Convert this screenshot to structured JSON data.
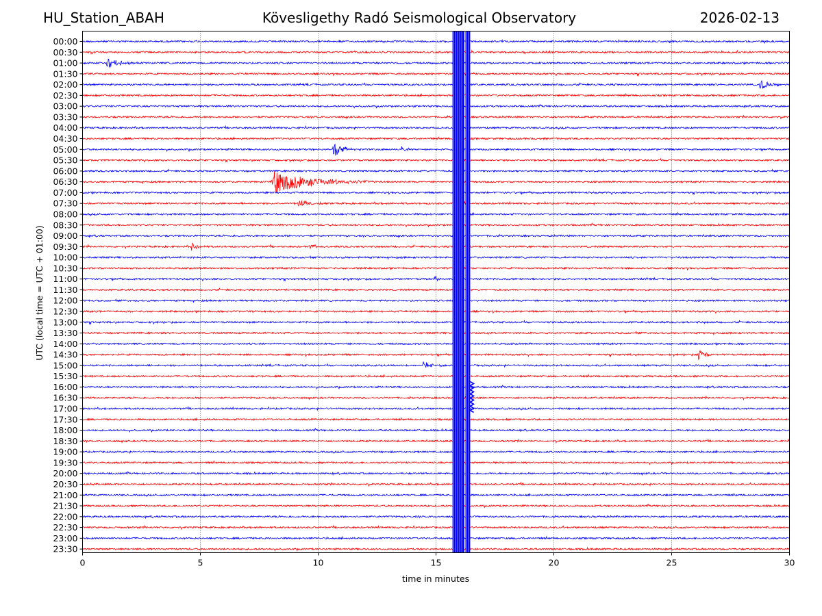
{
  "header": {
    "station": "HU_Station_ABAH",
    "observatory": "Kövesligethy Radó Seismological Observatory",
    "date": "2026-02-13"
  },
  "colors": {
    "blue": "#0000ff",
    "red": "#ff0000",
    "grid": "#000000"
  },
  "chart_data": {
    "type": "line",
    "title": "Kövesligethy Radó Seismological Observatory",
    "xlabel": "time in minutes",
    "ylabel": "UTC (local time = UTC + 01:00)",
    "xlim": [
      0,
      30
    ],
    "x_ticks": [
      0,
      5,
      10,
      15,
      20,
      25,
      30
    ],
    "grid": "vertical dotted lines at major x ticks",
    "row_labels": [
      "00:00",
      "00:30",
      "01:00",
      "01:30",
      "02:00",
      "02:30",
      "03:00",
      "03:30",
      "04:00",
      "04:30",
      "05:00",
      "05:30",
      "06:00",
      "06:30",
      "07:00",
      "07:30",
      "08:00",
      "08:30",
      "09:00",
      "09:30",
      "10:00",
      "10:30",
      "11:00",
      "11:30",
      "12:00",
      "12:30",
      "13:00",
      "13:30",
      "14:00",
      "14:30",
      "15:00",
      "15:30",
      "16:00",
      "16:30",
      "17:00",
      "17:30",
      "18:00",
      "18:30",
      "19:00",
      "19:30",
      "20:00",
      "20:30",
      "21:00",
      "21:30",
      "22:00",
      "22:30",
      "23:00",
      "23:30"
    ],
    "trace_colors_alternate": [
      "blue",
      "red"
    ],
    "events": [
      {
        "row": "01:00",
        "start_min": 1.0,
        "duration_min": 1.5,
        "amplitude": 0.5
      },
      {
        "row": "02:00",
        "start_min": 28.7,
        "duration_min": 1.3,
        "amplitude": 0.4
      },
      {
        "row": "05:00",
        "start_min": 10.6,
        "duration_min": 1.2,
        "amplitude": 0.6
      },
      {
        "row": "05:00",
        "start_min": 13.5,
        "duration_min": 0.6,
        "amplitude": 0.3
      },
      {
        "row": "06:30",
        "start_min": 8.0,
        "duration_min": 4.5,
        "amplitude": 1.0
      },
      {
        "row": "07:30",
        "start_min": 9.1,
        "duration_min": 1.6,
        "amplitude": 0.35
      },
      {
        "row": "09:30",
        "start_min": 4.6,
        "duration_min": 0.6,
        "amplitude": 0.45
      },
      {
        "row": "09:30",
        "start_min": 9.6,
        "duration_min": 0.7,
        "amplitude": 0.3
      },
      {
        "row": "11:00",
        "start_min": 14.9,
        "duration_min": 0.6,
        "amplitude": 0.25
      },
      {
        "row": "14:30",
        "start_min": 26.1,
        "duration_min": 0.8,
        "amplitude": 0.6
      },
      {
        "row": "15:00",
        "start_min": 14.4,
        "duration_min": 1.3,
        "amplitude": 0.3
      }
    ],
    "saturated_bands_min": [
      [
        15.7,
        16.2
      ],
      [
        16.25,
        16.45
      ]
    ],
    "saturation_tail_rows": [
      "16:00",
      "16:30",
      "17:00"
    ],
    "saturation_tail_end_min": 16.6
  }
}
